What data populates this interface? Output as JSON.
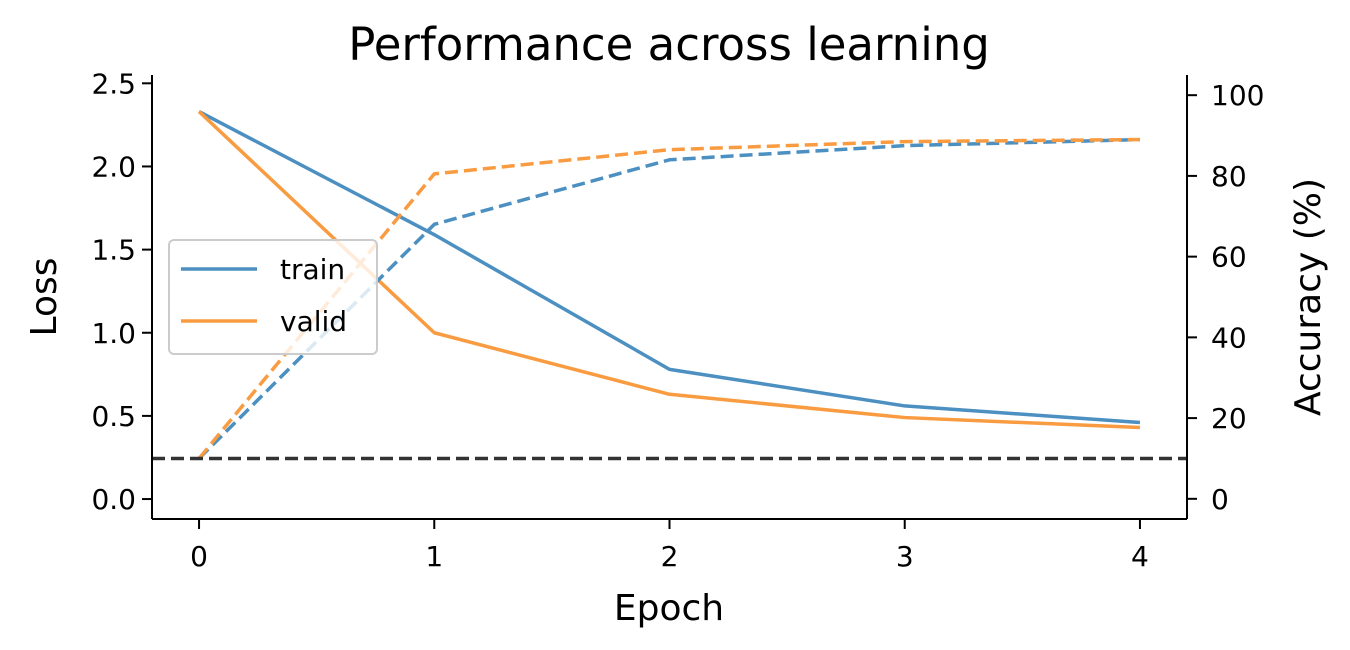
{
  "chart_data": {
    "type": "line",
    "title": "Performance across learning",
    "xlabel": "Epoch",
    "ylabel_left": "Loss",
    "ylabel_right": "Accuracy (%)",
    "x": [
      0,
      1,
      2,
      3,
      4
    ],
    "xlim": [
      -0.2,
      4.2
    ],
    "ylim_left": [
      -0.12,
      2.55
    ],
    "ylim_right": [
      -5,
      105
    ],
    "x_ticks": [
      "0",
      "1",
      "2",
      "3",
      "4"
    ],
    "y_left_ticks": [
      "0.0",
      "0.5",
      "1.0",
      "1.5",
      "2.0",
      "2.5"
    ],
    "y_right_ticks": [
      "0",
      "20",
      "40",
      "60",
      "80",
      "100"
    ],
    "series": [
      {
        "name": "train",
        "axis": "left",
        "style": "solid",
        "color": "#4c8fc1",
        "values": [
          2.33,
          1.59,
          0.78,
          0.56,
          0.46
        ]
      },
      {
        "name": "valid",
        "axis": "left",
        "style": "solid",
        "color": "#f99b40",
        "values": [
          2.33,
          1.0,
          0.63,
          0.49,
          0.43
        ]
      },
      {
        "axis": "right",
        "style": "dashed",
        "color": "#4c8fc1",
        "values": [
          10,
          68,
          84,
          87.5,
          89
        ]
      },
      {
        "axis": "right",
        "style": "dashed",
        "color": "#f99b40",
        "values": [
          10,
          80.5,
          86.5,
          88.5,
          89
        ]
      }
    ],
    "reference_line": {
      "axis": "right",
      "value": 10,
      "style": "dashed",
      "color": "#333333"
    },
    "legend": {
      "placement": "center-left",
      "entries": [
        "train",
        "valid"
      ]
    },
    "grid": false
  }
}
